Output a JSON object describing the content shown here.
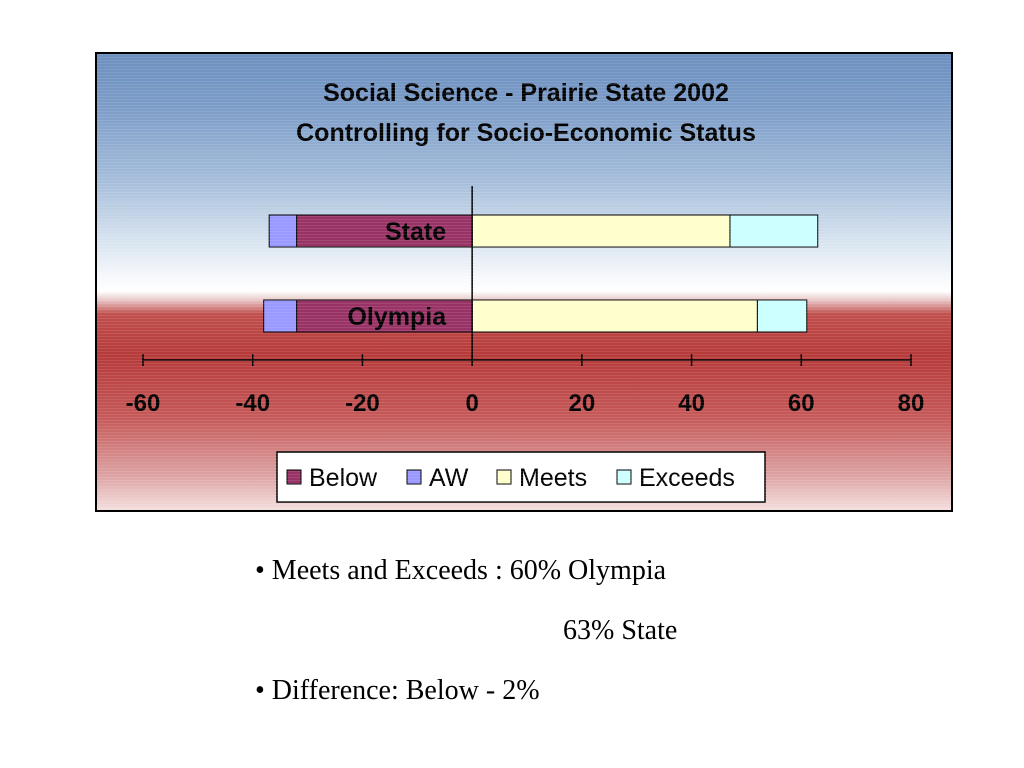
{
  "chart_data": {
    "type": "bar",
    "orientation": "horizontal",
    "stacked": "diverging",
    "title": [
      "Social Science - Prairie State 2002",
      "Controlling for Socio-Economic Status"
    ],
    "categories": [
      "State",
      "Olympia"
    ],
    "series": [
      {
        "name": "Below",
        "values": [
          -32,
          -32
        ],
        "color": "#993366"
      },
      {
        "name": "AW",
        "values": [
          -5,
          -6
        ],
        "color": "#9999ff"
      },
      {
        "name": "Meets",
        "values": [
          47,
          52
        ],
        "color": "#ffffcc"
      },
      {
        "name": "Exceeds",
        "values": [
          16,
          9
        ],
        "color": "#ccffff"
      }
    ],
    "xlim": [
      -60,
      80
    ],
    "xticks": [
      -60,
      -40,
      -20,
      0,
      20,
      40,
      60,
      80
    ],
    "xtick_labels": [
      "-60",
      "-40",
      "-20",
      "0",
      "20",
      "40",
      "60",
      "80"
    ],
    "legend_position": "bottom",
    "grid": false
  },
  "notes": {
    "line1": "• Meets and Exceeds : 60% Olympia",
    "line2": "63% State",
    "line3": "• Difference: Below - 2%"
  }
}
